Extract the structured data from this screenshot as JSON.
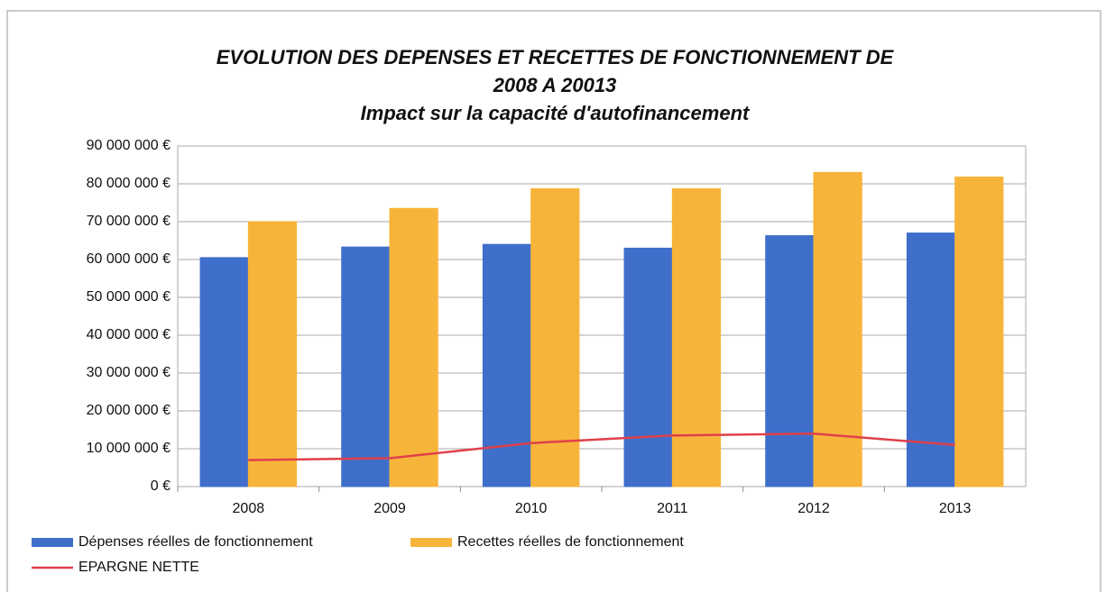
{
  "chart_data": {
    "type": "bar",
    "title": [
      "EVOLUTION DES DEPENSES ET RECETTES DE FONCTIONNEMENT DE",
      "2008 A 20013"
    ],
    "subtitle": "Impact sur la capacité d'autofinancement",
    "categories": [
      "2008",
      "2009",
      "2010",
      "2011",
      "2012",
      "2013"
    ],
    "series": [
      {
        "name": "Dépenses réelles de fonctionnement",
        "type": "bar",
        "color": "#3f6fcb",
        "values": [
          60500000,
          63300000,
          64000000,
          63000000,
          66300000,
          67000000
        ]
      },
      {
        "name": "Recettes réelles de fonctionnement",
        "type": "bar",
        "color": "#f7b43a",
        "values": [
          70000000,
          73500000,
          78700000,
          78700000,
          83000000,
          81800000
        ]
      },
      {
        "name": "EPARGNE NETTE",
        "type": "line",
        "color": "#e0404a",
        "values": [
          7000000,
          7500000,
          11500000,
          13500000,
          14000000,
          11000000
        ]
      }
    ],
    "ylim": [
      0,
      90000000
    ],
    "yticks": [
      {
        "value": 0,
        "label": "0 €"
      },
      {
        "value": 10000000,
        "label": "10 000 000 €"
      },
      {
        "value": 20000000,
        "label": "20 000 000 €"
      },
      {
        "value": 30000000,
        "label": "30 000 000 €"
      },
      {
        "value": 40000000,
        "label": "40 000 000 €"
      },
      {
        "value": 50000000,
        "label": "50 000 000 €"
      },
      {
        "value": 60000000,
        "label": "60 000 000 €"
      },
      {
        "value": 70000000,
        "label": "70 000 000 €"
      },
      {
        "value": 80000000,
        "label": "80 000 000 €"
      },
      {
        "value": 90000000,
        "label": "90 000 000 €"
      }
    ],
    "grid": true,
    "legend": "bottom"
  }
}
